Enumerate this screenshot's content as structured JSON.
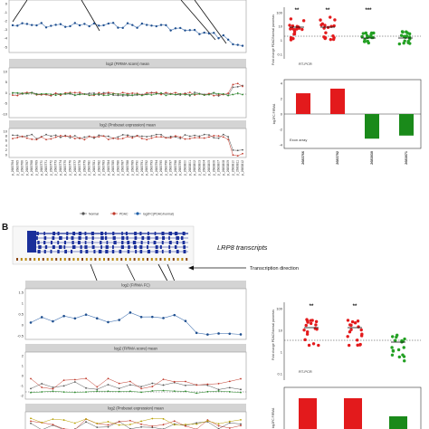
{
  "figure": {
    "panel_b_letter": "B",
    "legend": {
      "normal": "Normal",
      "pdac": "PDAC",
      "log2fc": "log2FC(PDAC/normal)"
    }
  },
  "panel_a": {
    "tracks": {
      "top": {
        "y_ticks": [
          "0",
          "-1",
          "-2",
          "-3",
          "-4",
          "-5"
        ]
      },
      "firma_score": {
        "title": "log2 (FIRMA score) mean",
        "y_ticks": [
          "10",
          "5",
          "0",
          "-5",
          "-10"
        ]
      },
      "probeset_expression": {
        "title": "log2 (Probeset expression) mean",
        "y_ticks": [
          "10",
          "8",
          "6",
          "4",
          "2",
          "0"
        ]
      }
    },
    "probeset_labels": [
      "p_2683764",
      "p_2683765",
      "p_2683766",
      "p_2683767",
      "p_2683768",
      "p_2683769",
      "p_2683770",
      "p_2683771",
      "p_2683772",
      "p_2683773",
      "p_2683774",
      "p_2683775",
      "p_2683776",
      "p_2683777",
      "p_2683778",
      "p_2683779",
      "p_2683780",
      "p_2683781",
      "p_2683782",
      "p_2683783",
      "p_2683784",
      "p_2683785",
      "p_2683786",
      "p_2683787",
      "p_2683788",
      "p_2683789",
      "p_2683790",
      "p_2683791",
      "p_2683792",
      "p_2683793",
      "p_2683794",
      "p_2683795",
      "p_2683796",
      "p_2683797",
      "p_2683798",
      "p_2683799",
      "p_2683800",
      "p_2683801",
      "p_2683802",
      "p_2683803",
      "p_2683804",
      "p_2683805",
      "p_2683806",
      "p_2683807",
      "p_2683808",
      "p_2683809",
      "p_2683810",
      "p_2683811",
      "p_2683812"
    ],
    "rtpcr": {
      "ylabel": "Fold change PDAC/Normal pancreas",
      "label": "RT-PCR",
      "significance": [
        "**",
        "**",
        "***",
        ""
      ],
      "y_ticks": [
        "100",
        "10",
        "1",
        "0.1"
      ]
    },
    "exon_array": {
      "ylabel": "log2FC FIRMA",
      "label": "Exon array",
      "categories": [
        "2683766",
        "2683792",
        "2683830",
        "2683871"
      ],
      "values": [
        2.7,
        3.3,
        -3.2,
        -2.8
      ],
      "colors": [
        "#e31a1c",
        "#e31a1c",
        "#1a8a1a",
        "#1a8a1a"
      ],
      "y_ticks": [
        "4",
        "2",
        "0",
        "-2",
        "-4"
      ]
    }
  },
  "panel_b": {
    "gene_label": "LRP8 transcripts",
    "transcription_direction": "Transcription direction",
    "tracks": {
      "firma_fc": {
        "title": "log2 (FIRMA FC)",
        "y_ticks": [
          "1.5",
          "1",
          "0.5",
          "0",
          "-0.5"
        ]
      },
      "firma_score": {
        "title": "log2 (FIRMA score) mean",
        "y_ticks": [
          "2",
          "1",
          "0",
          "-1",
          "-2"
        ]
      },
      "probeset_expression": {
        "title": "log2 (Probeset expression) mean"
      }
    },
    "rtpcr": {
      "ylabel": "Fold change PDAC/Normal pancreas",
      "label": "RT-PCR",
      "significance": [
        "**",
        "**",
        ""
      ],
      "y_ticks": [
        "100",
        "10",
        "1",
        "0.1"
      ]
    },
    "exon_array": {
      "ylabel": "log2FC FIRMA",
      "colors": [
        "#e31a1c",
        "#e31a1c",
        "#1a8a1a"
      ]
    }
  }
}
